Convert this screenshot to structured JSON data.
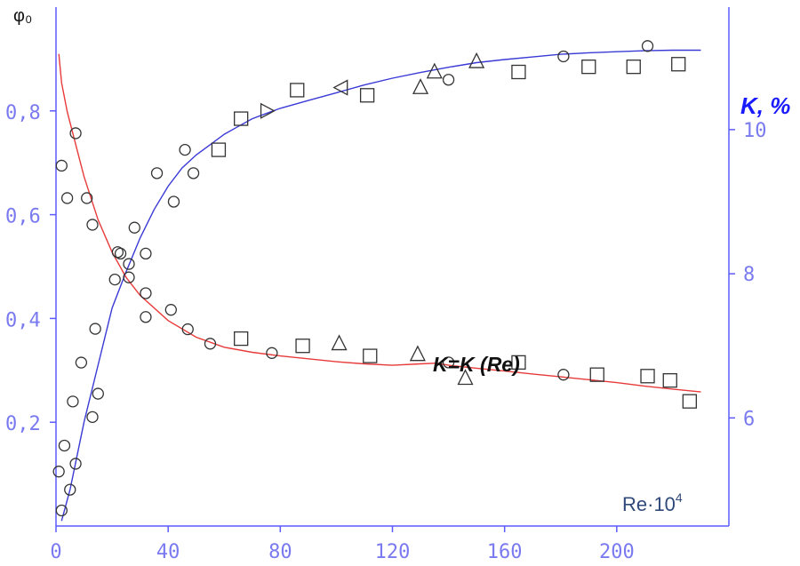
{
  "chart_data": {
    "type": "scatter",
    "x_axis": {
      "label": "Re·10",
      "label_exponent": "4",
      "range": [
        0,
        240
      ],
      "ticks": [
        0,
        40,
        80,
        120,
        160,
        200
      ],
      "tick_labels": [
        "0",
        "40",
        "80",
        "120",
        "160",
        "200"
      ]
    },
    "y_left_axis": {
      "label": "φ₀",
      "range": [
        0,
        1.0
      ],
      "ticks": [
        0.2,
        0.4,
        0.6,
        0.8
      ],
      "tick_labels": [
        "0,2",
        "0,4",
        "0,6",
        "0,8"
      ]
    },
    "y_right_axis": {
      "label": "K, %",
      "range": [
        4.5,
        11.7
      ],
      "ticks": [
        6,
        8,
        10
      ],
      "tick_labels": [
        "6",
        "8",
        "10"
      ]
    },
    "annotation": "K=K (Re)",
    "colors": {
      "axes": "#5b5bff",
      "tick_text": "#7a7af0",
      "phi_curve": "#3a3ad6",
      "k_curve": "#e83a3a",
      "markers": "#333333",
      "x_label": "#2f4a7a"
    },
    "series": [
      {
        "axis": "left",
        "role": "phi0-curve",
        "x": [
          2,
          5,
          10,
          15,
          20,
          25,
          30,
          35,
          40,
          45,
          50,
          55,
          60,
          65,
          70,
          75,
          80,
          90,
          100,
          110,
          120,
          130,
          140,
          150,
          160,
          170,
          180,
          190,
          200,
          210,
          220,
          230
        ],
        "y": [
          0.01,
          0.07,
          0.2,
          0.31,
          0.42,
          0.49,
          0.555,
          0.61,
          0.655,
          0.69,
          0.715,
          0.735,
          0.755,
          0.77,
          0.785,
          0.795,
          0.805,
          0.82,
          0.835,
          0.85,
          0.863,
          0.874,
          0.884,
          0.893,
          0.899,
          0.904,
          0.909,
          0.912,
          0.914,
          0.916,
          0.917,
          0.917
        ]
      },
      {
        "axis": "right",
        "role": "k-curve",
        "x": [
          1,
          2,
          4,
          6,
          8,
          10,
          15,
          20,
          25,
          30,
          40,
          50,
          60,
          70,
          80,
          90,
          100,
          110,
          120,
          130,
          136,
          140,
          150,
          160,
          170,
          180,
          190,
          200,
          210,
          220,
          230
        ],
        "y": [
          11.05,
          10.65,
          10.25,
          9.95,
          9.65,
          9.35,
          8.75,
          8.3,
          7.95,
          7.7,
          7.35,
          7.12,
          6.98,
          6.91,
          6.86,
          6.82,
          6.78,
          6.75,
          6.73,
          6.75,
          6.76,
          6.73,
          6.69,
          6.65,
          6.61,
          6.57,
          6.53,
          6.49,
          6.44,
          6.4,
          6.36
        ]
      },
      {
        "axis": "left",
        "role": "phi0-data",
        "points": [
          {
            "x": 1,
            "y": 0.105,
            "m": "circle"
          },
          {
            "x": 2,
            "y": 0.03,
            "m": "circle"
          },
          {
            "x": 3,
            "y": 0.155,
            "m": "circle"
          },
          {
            "x": 5,
            "y": 0.07,
            "m": "circle"
          },
          {
            "x": 6,
            "y": 0.24,
            "m": "circle"
          },
          {
            "x": 7,
            "y": 0.12,
            "m": "circle"
          },
          {
            "x": 9,
            "y": 0.315,
            "m": "circle"
          },
          {
            "x": 13,
            "y": 0.21,
            "m": "circle"
          },
          {
            "x": 14,
            "y": 0.38,
            "m": "circle"
          },
          {
            "x": 15,
            "y": 0.255,
            "m": "circle"
          },
          {
            "x": 21,
            "y": 0.475,
            "m": "circle"
          },
          {
            "x": 23,
            "y": 0.525,
            "m": "circle"
          },
          {
            "x": 26,
            "y": 0.505,
            "m": "circle"
          },
          {
            "x": 28,
            "y": 0.575,
            "m": "circle"
          },
          {
            "x": 32,
            "y": 0.525,
            "m": "circle"
          },
          {
            "x": 36,
            "y": 0.68,
            "m": "circle"
          },
          {
            "x": 42,
            "y": 0.625,
            "m": "circle"
          },
          {
            "x": 46,
            "y": 0.725,
            "m": "circle"
          },
          {
            "x": 49,
            "y": 0.68,
            "m": "circle"
          },
          {
            "x": 58,
            "y": 0.725,
            "m": "square"
          },
          {
            "x": 66,
            "y": 0.785,
            "m": "square"
          },
          {
            "x": 75,
            "y": 0.8,
            "m": "tri-right"
          },
          {
            "x": 86,
            "y": 0.84,
            "m": "square"
          },
          {
            "x": 102,
            "y": 0.845,
            "m": "tri-left"
          },
          {
            "x": 111,
            "y": 0.83,
            "m": "square"
          },
          {
            "x": 130,
            "y": 0.845,
            "m": "triangle"
          },
          {
            "x": 135,
            "y": 0.875,
            "m": "triangle"
          },
          {
            "x": 140,
            "y": 0.86,
            "m": "circle"
          },
          {
            "x": 150,
            "y": 0.895,
            "m": "triangle"
          },
          {
            "x": 165,
            "y": 0.875,
            "m": "square"
          },
          {
            "x": 181,
            "y": 0.905,
            "m": "circle"
          },
          {
            "x": 190,
            "y": 0.885,
            "m": "square"
          },
          {
            "x": 206,
            "y": 0.885,
            "m": "square"
          },
          {
            "x": 211,
            "y": 0.925,
            "m": "circle"
          },
          {
            "x": 222,
            "y": 0.89,
            "m": "square"
          }
        ]
      },
      {
        "axis": "right",
        "role": "k-data",
        "points": [
          {
            "x": 2,
            "y": 9.5,
            "m": "circle"
          },
          {
            "x": 4,
            "y": 9.05,
            "m": "circle"
          },
          {
            "x": 7,
            "y": 9.95,
            "m": "circle"
          },
          {
            "x": 11,
            "y": 9.05,
            "m": "circle"
          },
          {
            "x": 13,
            "y": 8.68,
            "m": "circle"
          },
          {
            "x": 22,
            "y": 8.3,
            "m": "circle"
          },
          {
            "x": 26,
            "y": 7.95,
            "m": "circle"
          },
          {
            "x": 32,
            "y": 7.73,
            "m": "circle"
          },
          {
            "x": 32,
            "y": 7.4,
            "m": "circle"
          },
          {
            "x": 41,
            "y": 7.5,
            "m": "circle"
          },
          {
            "x": 47,
            "y": 7.23,
            "m": "circle"
          },
          {
            "x": 55,
            "y": 7.03,
            "m": "circle"
          },
          {
            "x": 66,
            "y": 7.1,
            "m": "square"
          },
          {
            "x": 77,
            "y": 6.9,
            "m": "circle"
          },
          {
            "x": 88,
            "y": 7.0,
            "m": "square"
          },
          {
            "x": 101,
            "y": 7.03,
            "m": "triangle"
          },
          {
            "x": 112,
            "y": 6.86,
            "m": "square"
          },
          {
            "x": 129,
            "y": 6.88,
            "m": "triangle"
          },
          {
            "x": 140,
            "y": 6.77,
            "m": "circle"
          },
          {
            "x": 146,
            "y": 6.55,
            "m": "triangle"
          },
          {
            "x": 165,
            "y": 6.77,
            "m": "square"
          },
          {
            "x": 181,
            "y": 6.6,
            "m": "circle"
          },
          {
            "x": 193,
            "y": 6.6,
            "m": "square"
          },
          {
            "x": 211,
            "y": 6.58,
            "m": "square"
          },
          {
            "x": 219,
            "y": 6.52,
            "m": "square"
          },
          {
            "x": 226,
            "y": 6.23,
            "m": "square"
          }
        ]
      }
    ]
  }
}
